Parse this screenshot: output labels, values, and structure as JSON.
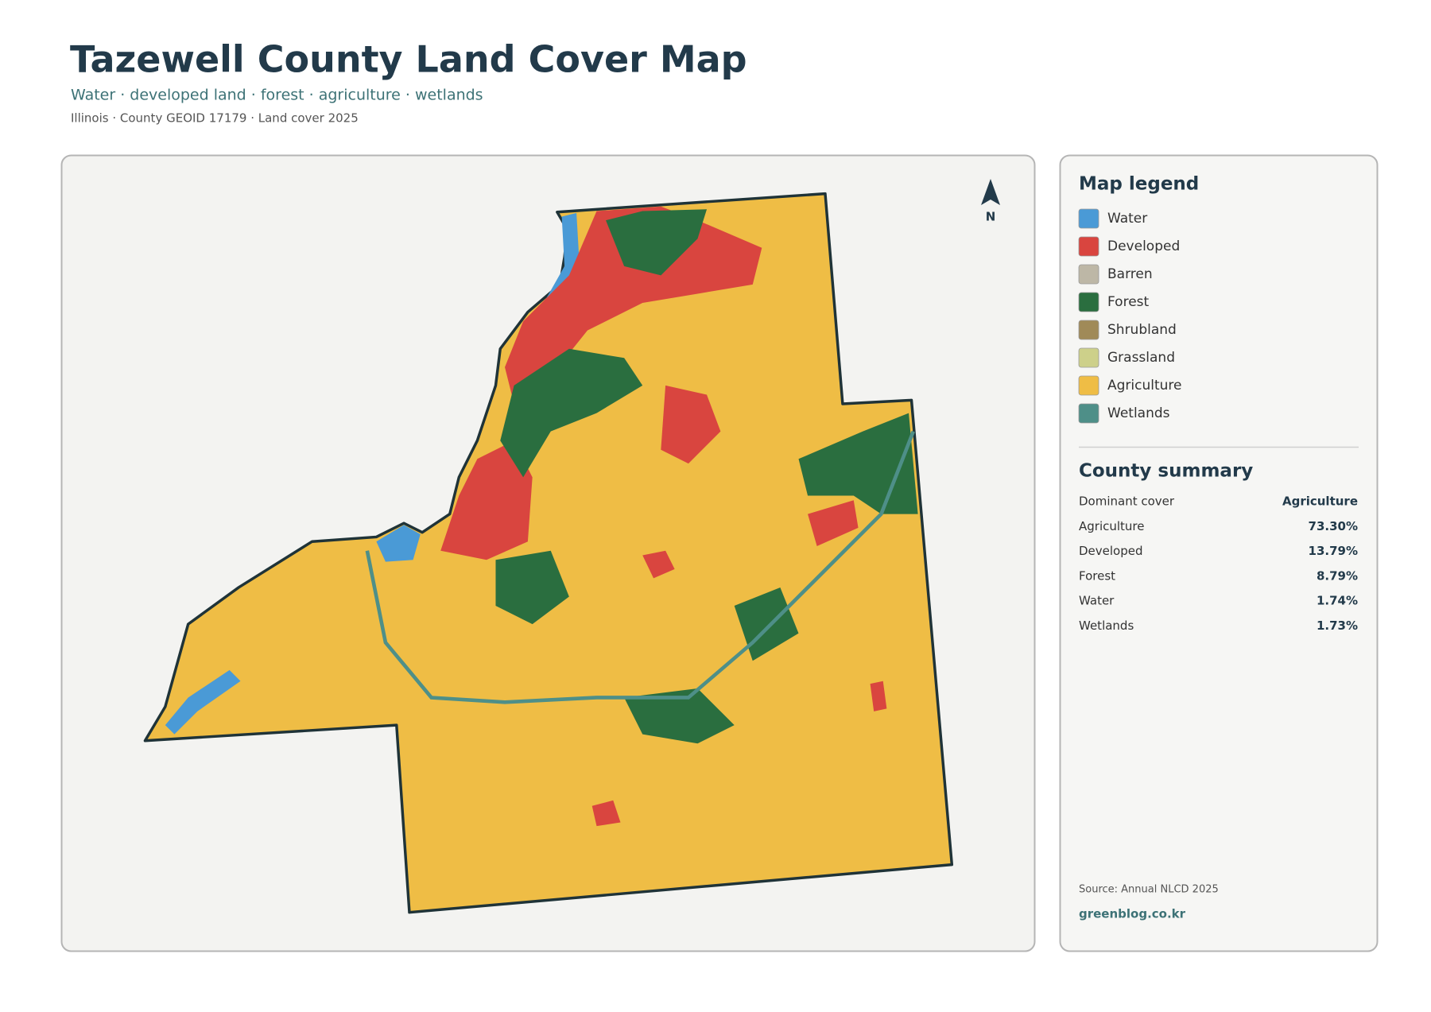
{
  "header": {
    "title": "Tazewell County Land Cover Map",
    "subtitle": "Water · developed land · forest · agriculture · wetlands",
    "meta": "Illinois · County GEOID 17179 · Land cover 2025"
  },
  "map": {
    "north_label": "N"
  },
  "legend": {
    "title": "Map legend",
    "items": [
      {
        "label": "Water",
        "color": "#4a9ad6"
      },
      {
        "label": "Developed",
        "color": "#d9453f"
      },
      {
        "label": "Barren",
        "color": "#bdb7a6"
      },
      {
        "label": "Forest",
        "color": "#2a6e3f"
      },
      {
        "label": "Shrubland",
        "color": "#a08a58"
      },
      {
        "label": "Grassland",
        "color": "#cdd08a"
      },
      {
        "label": "Agriculture",
        "color": "#efbd45"
      },
      {
        "label": "Wetlands",
        "color": "#4e8f88"
      }
    ]
  },
  "summary": {
    "title": "County summary",
    "rows": [
      {
        "label": "Dominant cover",
        "value": "Agriculture"
      },
      {
        "label": "Agriculture",
        "value": "73.30%"
      },
      {
        "label": "Developed",
        "value": "13.79%"
      },
      {
        "label": "Forest",
        "value": "8.79%"
      },
      {
        "label": "Water",
        "value": "1.74%"
      },
      {
        "label": "Wetlands",
        "value": "1.73%"
      }
    ]
  },
  "footer": {
    "source": "Source: Annual NLCD 2025",
    "site": "greenblog.co.kr"
  }
}
